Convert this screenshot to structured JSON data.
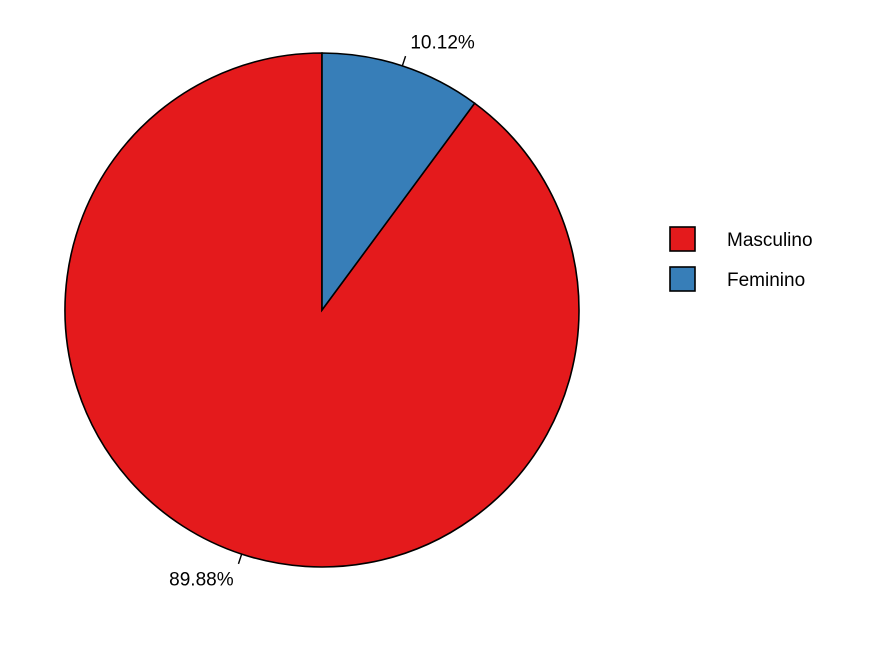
{
  "chart_data": {
    "type": "pie",
    "slices": [
      {
        "label": "Masculino",
        "value": 89.88,
        "display": "89.88%",
        "color": "#E41A1C"
      },
      {
        "label": "Feminino",
        "value": 10.12,
        "display": "10.12%",
        "color": "#377EB8"
      }
    ],
    "start": "top",
    "direction": "counter-clockwise",
    "legend": {
      "position": "right",
      "entries": [
        "Masculino",
        "Feminino"
      ]
    }
  }
}
